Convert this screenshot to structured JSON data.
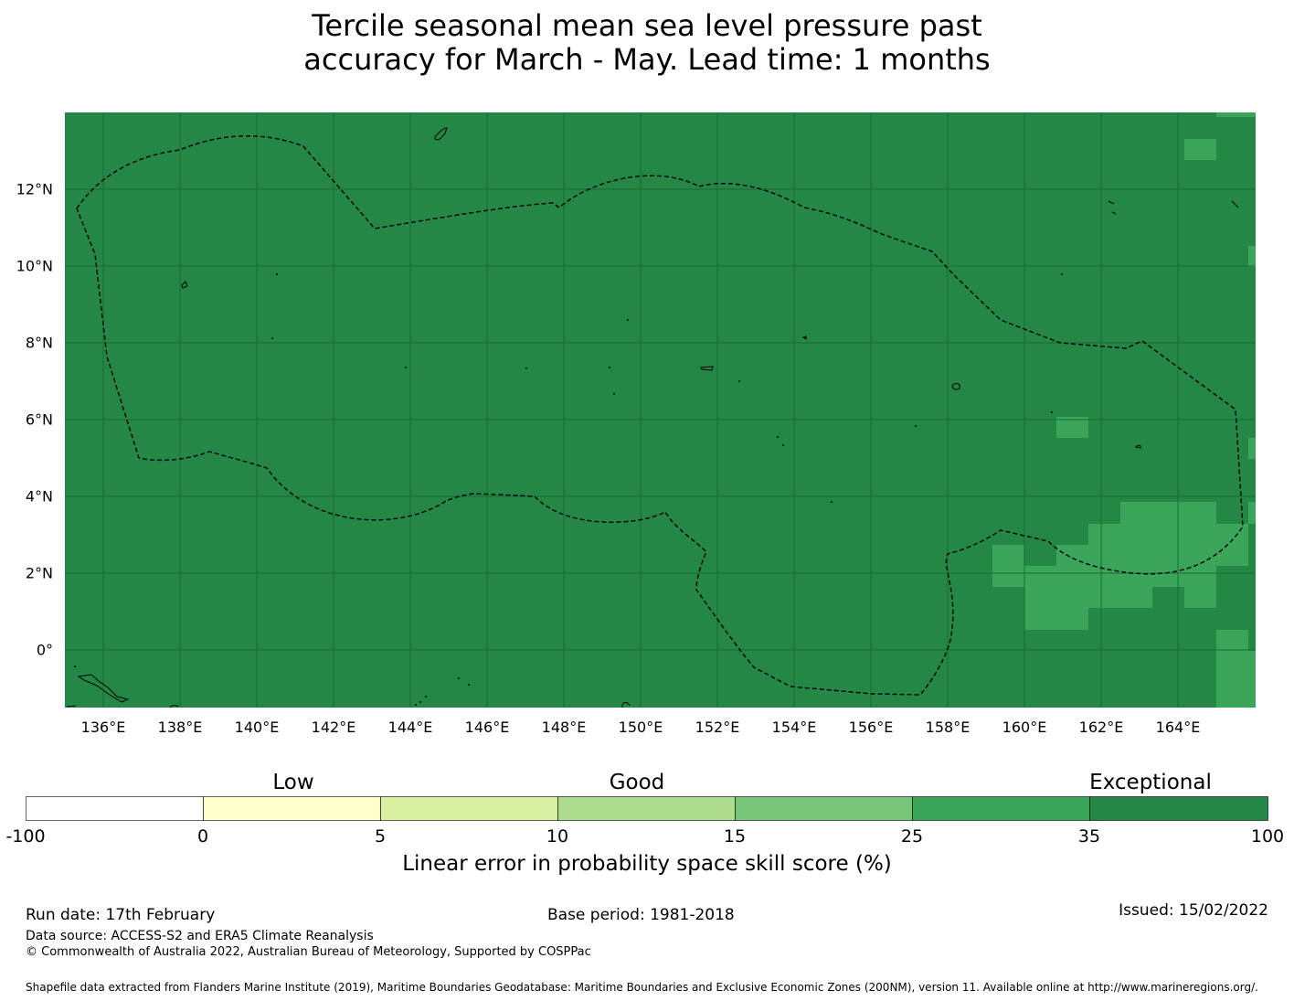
{
  "title": {
    "line1": "Tercile seasonal mean sea level pressure past",
    "line2": "accuracy for March - May. Lead time: 1 months"
  },
  "map": {
    "background_color": "#248745",
    "lon_range_deg": [
      135,
      166
    ],
    "lat_range_deg": [
      -1.5,
      14
    ],
    "lon_ticks": [
      "136°E",
      "138°E",
      "140°E",
      "142°E",
      "144°E",
      "146°E",
      "148°E",
      "150°E",
      "152°E",
      "154°E",
      "156°E",
      "158°E",
      "160°E",
      "162°E",
      "164°E"
    ],
    "lat_ticks": [
      "12°N",
      "10°N",
      "8°N",
      "6°N",
      "4°N",
      "2°N",
      "0°"
    ],
    "lighter_cells_color": "#3ba55a",
    "lighter_cells_category": "25 to 35",
    "eez_boundary_style": "dashed"
  },
  "legend": {
    "categories": [
      "Low",
      "Good",
      "Exceptional"
    ],
    "ticks": [
      "-100",
      "0",
      "5",
      "10",
      "15",
      "25",
      "35",
      "100"
    ],
    "colors": [
      "#ffffff",
      "#ffffcc",
      "#d9f0a3",
      "#addd8e",
      "#78c679",
      "#3ba55a",
      "#248745"
    ],
    "label": "Linear error in probability space skill score (%)"
  },
  "footer": {
    "run_date": "Run date: 17th February",
    "base_period": "Base period: 1981-2018",
    "issued": "Issued: 15/02/2022",
    "data_source": "Data source: ACCESS-S2 and ERA5 Climate Reanalysis",
    "copyright": "© Commonwealth of Australia 2022, Australian Bureau of Meteorology, Supported by COSPPac",
    "shapefile": "Shapefile data extracted from Flanders Marine Institute (2019), Maritime Boundaries Geodatabase: Maritime Boundaries and Exclusive Economic Zones (200NM), version 11. Available online at http://www.marineregions.org/."
  }
}
